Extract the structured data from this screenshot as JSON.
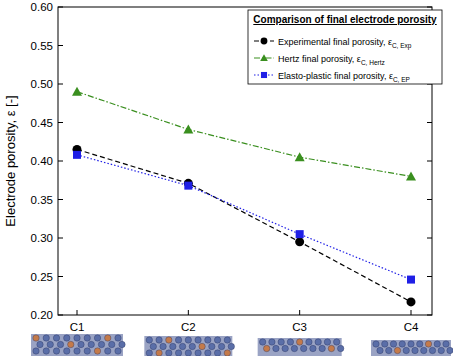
{
  "chart_data": {
    "type": "line",
    "y_label": "Electrode porosity, ε [-]",
    "legend_title": "Comparison of final electrode porosity",
    "legend": "upper right",
    "grid": false,
    "categories": [
      "C1",
      "C2",
      "C3",
      "C4"
    ],
    "ylim": [
      0.2,
      0.6
    ],
    "yticks": [
      {
        "value": 0.2,
        "label": "0.20"
      },
      {
        "value": 0.25,
        "label": "0.25"
      },
      {
        "value": 0.3,
        "label": "0.30"
      },
      {
        "value": 0.35,
        "label": "0.35"
      },
      {
        "value": 0.4,
        "label": "0.40"
      },
      {
        "value": 0.45,
        "label": "0.45"
      },
      {
        "value": 0.5,
        "label": "0.50"
      },
      {
        "value": 0.55,
        "label": "0.55"
      },
      {
        "value": 0.6,
        "label": "0.60"
      }
    ],
    "series": [
      {
        "name": "Experimental final porosity, εC, Exp",
        "color": "#000000",
        "marker": "circle",
        "line_style": "dashed",
        "values": [
          0.415,
          0.371,
          0.295,
          0.217
        ]
      },
      {
        "name": "Hertz final porosity, εC, Hertz",
        "color": "#3a8f1f",
        "marker": "triangle",
        "line_style": "dashdot",
        "values": [
          0.49,
          0.441,
          0.405,
          0.38
        ]
      },
      {
        "name": "Elasto-plastic final porosity, εC, EP",
        "color": "#1f1fe6",
        "marker": "square",
        "line_style": "dotted",
        "values": [
          0.408,
          0.368,
          0.305,
          0.246
        ]
      }
    ]
  }
}
